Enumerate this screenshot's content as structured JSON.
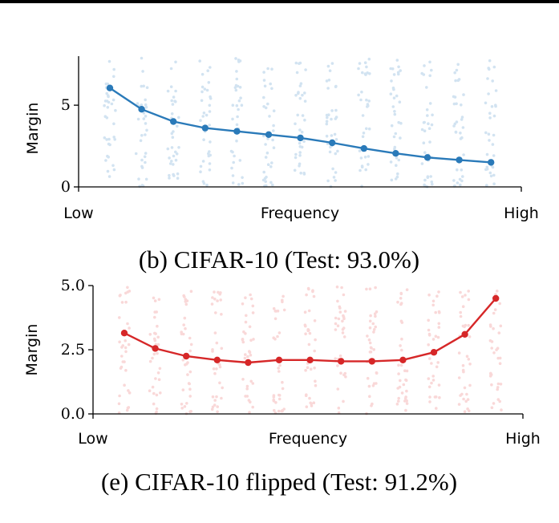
{
  "chart_data": [
    {
      "type": "line",
      "ylabel": "Margin",
      "xlabel": "Frequency",
      "x_tick_labels": [
        "Low",
        "High"
      ],
      "y_ticks": [
        0,
        5
      ],
      "y_tick_labels": [
        "0",
        "5"
      ],
      "ylim": [
        0,
        8
      ],
      "caption": "(b) CIFAR-10 (Test: 93.0%)",
      "color": "#2a7ab9",
      "scatter_color": "#9dc3e2",
      "series": [
        {
          "values": [
            6.05,
            4.75,
            4.0,
            3.6,
            3.4,
            3.2,
            3.0,
            2.7,
            2.35,
            2.05,
            1.8,
            1.65,
            1.5
          ]
        }
      ]
    },
    {
      "type": "line",
      "ylabel": "Margin",
      "xlabel": "Frequency",
      "x_tick_labels": [
        "Low",
        "High"
      ],
      "y_ticks": [
        0,
        2.5,
        5
      ],
      "y_tick_labels": [
        "0.0",
        "2.5",
        "5.0"
      ],
      "ylim": [
        0,
        5
      ],
      "caption": "(e) CIFAR-10 flipped (Test: 91.2%)",
      "color": "#d62728",
      "scatter_color": "#f2a9aa",
      "series": [
        {
          "values": [
            3.15,
            2.55,
            2.25,
            2.1,
            2.0,
            2.1,
            2.1,
            2.05,
            2.05,
            2.1,
            2.4,
            3.1,
            4.5
          ]
        }
      ]
    }
  ]
}
